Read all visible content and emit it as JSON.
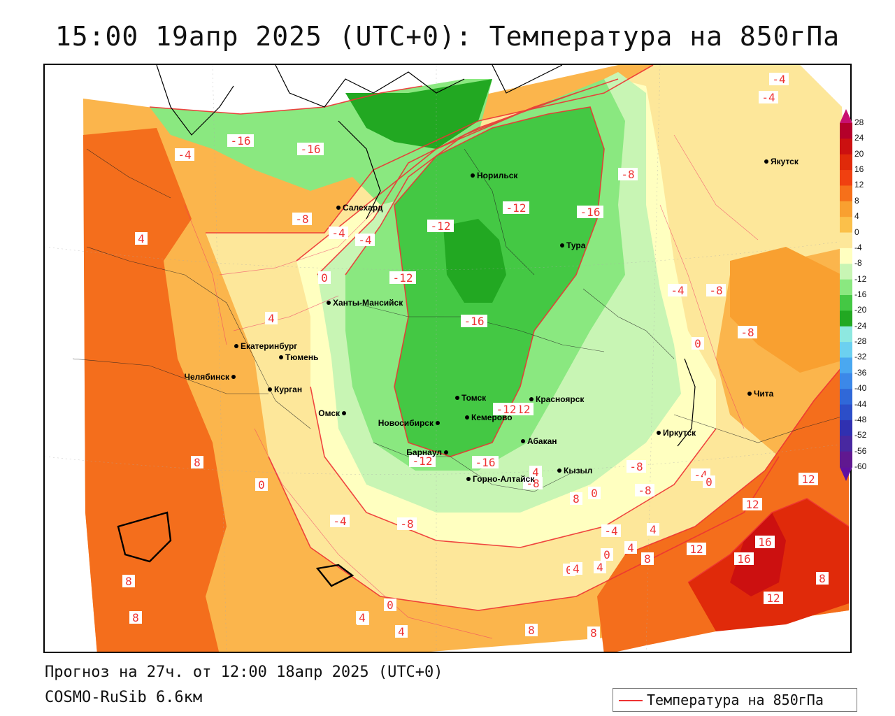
{
  "title": "15:00 19апр 2025 (UTC+0): Температура на 850гПа",
  "footer": {
    "forecast": "Прогноз на 27ч. от 12:00 18апр 2025 (UTC+0)",
    "model": "COSMO-RuSib 6.6км"
  },
  "legend": {
    "line_label": "Температура на 850гПа",
    "line_color": "#e33333"
  },
  "colorbar": {
    "ticks": [
      "28",
      "24",
      "20",
      "16",
      "12",
      "8",
      "4",
      "0",
      "-4",
      "-8",
      "-12",
      "-16",
      "-20",
      "-24",
      "-28",
      "-32",
      "-36",
      "-40",
      "-44",
      "-48",
      "-52",
      "-56",
      "-60"
    ],
    "colors": [
      "#b4002a",
      "#cc1010",
      "#e02a0a",
      "#f04010",
      "#f6701a",
      "#f9a030",
      "#fbc04a",
      "#fde79a",
      "#ffffc0",
      "#c8f5b4",
      "#8ae880",
      "#44c844",
      "#22a822",
      "#8ee8e0",
      "#6cd0f0",
      "#4aa8f0",
      "#3c88e8",
      "#3068d8",
      "#2c4ec8",
      "#3030b0",
      "#4828a0",
      "#601890"
    ]
  },
  "cities": [
    {
      "name": "Салехард"
    },
    {
      "name": "Норильск"
    },
    {
      "name": "Тура"
    },
    {
      "name": "Якутск"
    },
    {
      "name": "Ханты-Мансийск"
    },
    {
      "name": "Екатеринбург"
    },
    {
      "name": "Тюмень"
    },
    {
      "name": "Челябинск"
    },
    {
      "name": "Курган"
    },
    {
      "name": "Омск"
    },
    {
      "name": "Новосибирск"
    },
    {
      "name": "Томск"
    },
    {
      "name": "Кемерово"
    },
    {
      "name": "Барнаул"
    },
    {
      "name": "Красноярск"
    },
    {
      "name": "Абакан"
    },
    {
      "name": "Кызыл"
    },
    {
      "name": "Горно-Алтайск"
    },
    {
      "name": "Иркутск"
    },
    {
      "name": "Чита"
    }
  ],
  "contour_labels": [
    "-4",
    "-4",
    "-4",
    "-16",
    "-16",
    "-4",
    "-8",
    "-4",
    "-8",
    "-12",
    "-16",
    "-12",
    "-8",
    "-12",
    "0",
    "4",
    "-16",
    "-4",
    "0",
    "-12",
    "-12",
    "-8",
    "-4",
    "0",
    "-8",
    "-4",
    "-8",
    "0",
    "4",
    "0",
    "4",
    "8",
    "8",
    "8",
    "4",
    "8",
    "12",
    "12",
    "12",
    "16",
    "16",
    "12",
    "8",
    "4",
    "0",
    "4",
    "0",
    "-4",
    "4",
    "4",
    "8",
    "8",
    "4",
    "4",
    "0",
    "8",
    "-8",
    "-12",
    "-16",
    "-8"
  ]
}
